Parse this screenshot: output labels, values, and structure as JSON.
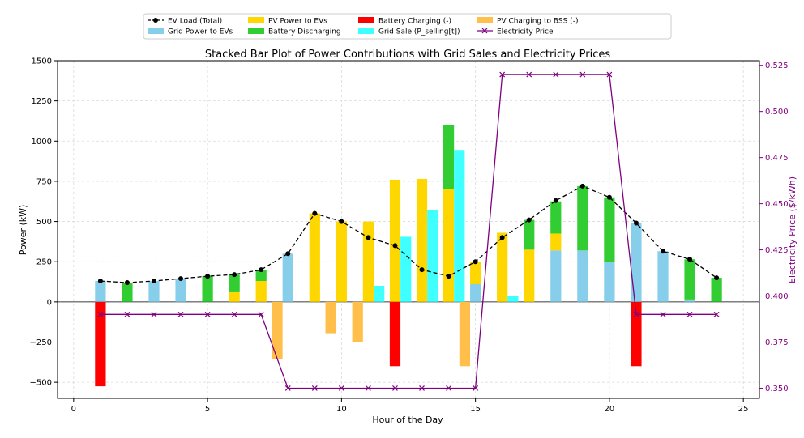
{
  "chart_data": {
    "type": "bar",
    "title": "Stacked Bar Plot of Power Contributions with Grid Sales and Electricity Prices",
    "xlabel": "Hour of the Day",
    "ylabel": "Power (kW)",
    "y2label": "Electricity Price ($/kWh)",
    "xlim": [
      -0.6,
      25.6
    ],
    "ylim": [
      -600,
      1500
    ],
    "y2lim": [
      0.3445,
      0.5275
    ],
    "xticks": [
      "0",
      "5",
      "10",
      "15",
      "20",
      "25"
    ],
    "yticks": [
      "−500",
      "−250",
      "0",
      "250",
      "500",
      "750",
      "1000",
      "1250",
      "1500"
    ],
    "y2ticks": [
      "0.350",
      "0.375",
      "0.400",
      "0.425",
      "0.450",
      "0.475",
      "0.500",
      "0.525"
    ],
    "grid": true,
    "legend_position": "top",
    "hours": [
      1,
      2,
      3,
      4,
      5,
      6,
      7,
      8,
      9,
      10,
      11,
      12,
      13,
      14,
      15,
      16,
      17,
      18,
      19,
      20,
      21,
      22,
      23,
      24
    ],
    "series": [
      {
        "name": "EV Load (Total)",
        "kind": "line",
        "color": "#000000",
        "values": [
          130,
          120,
          130,
          145,
          160,
          170,
          200,
          300,
          550,
          500,
          400,
          350,
          200,
          160,
          250,
          400,
          510,
          630,
          720,
          650,
          490,
          315,
          265,
          150
        ]
      },
      {
        "name": "Grid Power to EVs",
        "kind": "bar",
        "color": "#87ceeb",
        "values": [
          130,
          0,
          130,
          145,
          0,
          0,
          0,
          300,
          0,
          0,
          0,
          0,
          0,
          0,
          110,
          0,
          0,
          320,
          320,
          250,
          490,
          315,
          15,
          0
        ]
      },
      {
        "name": "PV Power to EVs",
        "kind": "bar",
        "color": "#ffd700",
        "values": [
          0,
          0,
          0,
          0,
          0,
          60,
          130,
          0,
          550,
          500,
          500,
          760,
          765,
          700,
          140,
          430,
          325,
          105,
          0,
          0,
          0,
          0,
          0,
          0
        ]
      },
      {
        "name": "Battery Discharging",
        "kind": "bar",
        "color": "#32cd32",
        "values": [
          0,
          120,
          0,
          0,
          160,
          110,
          70,
          0,
          0,
          0,
          0,
          0,
          0,
          400,
          0,
          0,
          185,
          200,
          400,
          400,
          0,
          0,
          250,
          150
        ]
      },
      {
        "name": "Battery Charging (-)",
        "kind": "bar",
        "color": "#ff0000",
        "values": [
          -525,
          0,
          0,
          0,
          0,
          0,
          0,
          0,
          0,
          0,
          0,
          -400,
          0,
          0,
          0,
          0,
          0,
          0,
          0,
          0,
          -400,
          0,
          0,
          0
        ]
      },
      {
        "name": "Grid Sale (P_selling[t])",
        "kind": "bar",
        "color": "#40ffff",
        "values": [
          0,
          0,
          0,
          0,
          0,
          0,
          0,
          0,
          0,
          0,
          100,
          405,
          570,
          945,
          0,
          35,
          0,
          0,
          0,
          0,
          0,
          0,
          0,
          0
        ]
      },
      {
        "name": "PV Charging to BSS (-)",
        "kind": "bar",
        "color": "#ffbf4a",
        "values": [
          0,
          0,
          0,
          0,
          0,
          0,
          0,
          -355,
          0,
          -195,
          -250,
          0,
          0,
          0,
          -400,
          0,
          0,
          0,
          0,
          0,
          0,
          0,
          0,
          0
        ]
      },
      {
        "name": "Electricity Price",
        "kind": "line",
        "axis": "right",
        "color": "#800080",
        "values": [
          0.39,
          0.39,
          0.39,
          0.39,
          0.39,
          0.39,
          0.39,
          0.35,
          0.35,
          0.35,
          0.35,
          0.35,
          0.35,
          0.35,
          0.35,
          0.52,
          0.52,
          0.52,
          0.52,
          0.52,
          0.39,
          0.39,
          0.39,
          0.39
        ]
      }
    ]
  }
}
